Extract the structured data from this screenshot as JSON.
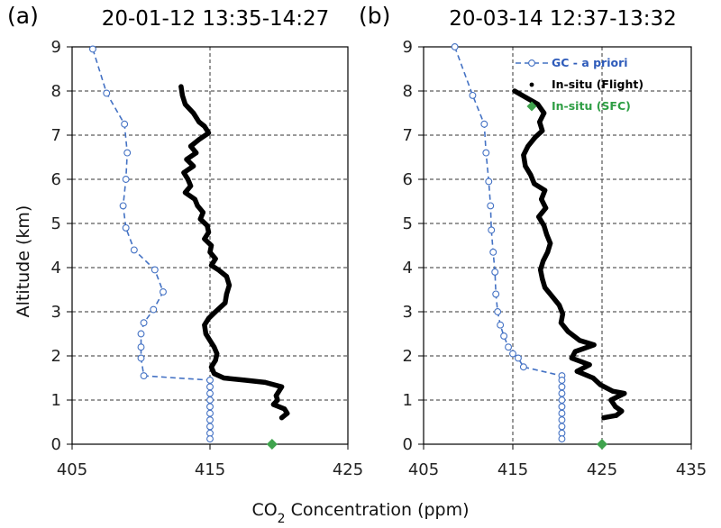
{
  "chart_data": [
    {
      "type": "scatter",
      "panel_label": "(a)",
      "title": "20-01-12  13:35-14:27",
      "xlabel": "CO2 Concentration (ppm)",
      "ylabel": "Altitude (km)",
      "xlim": [
        405,
        425
      ],
      "ylim": [
        0,
        9
      ],
      "x_ticks": [
        405,
        415,
        425
      ],
      "y_ticks": [
        0,
        1,
        2,
        3,
        4,
        5,
        6,
        7,
        8,
        9
      ],
      "grid": "dashed, major ticks",
      "series": [
        {
          "name": "GC - a priori",
          "style": "dashed-line-open-circles",
          "color": "#4472C4",
          "points": [
            [
              406.5,
              8.95
            ],
            [
              407.5,
              7.95
            ],
            [
              408.8,
              7.25
            ],
            [
              409.0,
              6.6
            ],
            [
              408.9,
              6.0
            ],
            [
              408.7,
              5.4
            ],
            [
              408.9,
              4.9
            ],
            [
              409.5,
              4.4
            ],
            [
              411.0,
              3.95
            ],
            [
              411.6,
              3.45
            ],
            [
              410.9,
              3.05
            ],
            [
              410.2,
              2.75
            ],
            [
              410.0,
              2.5
            ],
            [
              410.0,
              2.2
            ],
            [
              410.0,
              1.95
            ],
            [
              410.2,
              1.55
            ],
            [
              415.0,
              1.45
            ],
            [
              415.0,
              1.3
            ],
            [
              415.0,
              1.15
            ],
            [
              415.0,
              1.0
            ],
            [
              415.0,
              0.85
            ],
            [
              415.0,
              0.7
            ],
            [
              415.0,
              0.55
            ],
            [
              415.0,
              0.4
            ],
            [
              415.0,
              0.25
            ],
            [
              415.0,
              0.12
            ]
          ]
        },
        {
          "name": "In-situ (Flight)",
          "style": "black-dots",
          "color": "#000000",
          "points": [
            [
              412.9,
              8.1
            ],
            [
              413.0,
              7.9
            ],
            [
              413.2,
              7.7
            ],
            [
              413.8,
              7.5
            ],
            [
              414.2,
              7.3
            ],
            [
              414.6,
              7.2
            ],
            [
              414.9,
              7.05
            ],
            [
              414.2,
              6.9
            ],
            [
              413.6,
              6.75
            ],
            [
              414.0,
              6.6
            ],
            [
              413.3,
              6.45
            ],
            [
              413.8,
              6.3
            ],
            [
              413.1,
              6.15
            ],
            [
              413.4,
              6.0
            ],
            [
              413.6,
              5.85
            ],
            [
              413.2,
              5.7
            ],
            [
              413.9,
              5.55
            ],
            [
              414.1,
              5.4
            ],
            [
              414.5,
              5.25
            ],
            [
              414.3,
              5.1
            ],
            [
              414.8,
              4.95
            ],
            [
              414.9,
              4.8
            ],
            [
              414.6,
              4.65
            ],
            [
              415.1,
              4.5
            ],
            [
              415.0,
              4.35
            ],
            [
              415.4,
              4.2
            ],
            [
              415.1,
              4.05
            ],
            [
              415.6,
              3.95
            ],
            [
              416.2,
              3.8
            ],
            [
              416.4,
              3.6
            ],
            [
              416.2,
              3.4
            ],
            [
              416.1,
              3.2
            ],
            [
              415.4,
              3.0
            ],
            [
              414.9,
              2.85
            ],
            [
              414.6,
              2.7
            ],
            [
              414.7,
              2.5
            ],
            [
              415.0,
              2.35
            ],
            [
              415.3,
              2.2
            ],
            [
              415.5,
              2.05
            ],
            [
              415.4,
              1.9
            ],
            [
              415.1,
              1.75
            ],
            [
              415.3,
              1.6
            ],
            [
              416.0,
              1.5
            ],
            [
              417.5,
              1.45
            ],
            [
              419.0,
              1.4
            ],
            [
              420.2,
              1.3
            ],
            [
              420.0,
              1.2
            ],
            [
              419.8,
              1.1
            ],
            [
              419.9,
              1.0
            ],
            [
              419.6,
              0.9
            ],
            [
              420.4,
              0.8
            ],
            [
              420.6,
              0.7
            ],
            [
              420.2,
              0.6
            ]
          ]
        },
        {
          "name": "In-situ (SFC)",
          "style": "green-diamond",
          "color": "#3FA34D",
          "points": [
            [
              419.5,
              0.0
            ]
          ]
        }
      ]
    },
    {
      "type": "scatter",
      "panel_label": "(b)",
      "title": "20-03-14  12:37-13:32",
      "xlabel": "CO2 Concentration (ppm)",
      "ylabel": "",
      "xlim": [
        405,
        435
      ],
      "ylim": [
        0,
        9
      ],
      "x_ticks": [
        405,
        415,
        425,
        435
      ],
      "y_ticks": [
        0,
        1,
        2,
        3,
        4,
        5,
        6,
        7,
        8,
        9
      ],
      "grid": "dashed, major ticks",
      "legend": {
        "position": "top-right",
        "entries": [
          {
            "label": "GC - a priori",
            "color": "#2E5BBA",
            "marker": "dashed-circle"
          },
          {
            "label": "In-situ (Flight)",
            "color": "#000000",
            "marker": "dot"
          },
          {
            "label": "In-situ (SFC)",
            "color": "#2E9E44",
            "marker": "diamond"
          }
        ]
      },
      "series": [
        {
          "name": "GC - a priori",
          "style": "dashed-line-open-circles",
          "color": "#4472C4",
          "points": [
            [
              408.5,
              9.0
            ],
            [
              410.5,
              7.9
            ],
            [
              411.8,
              7.25
            ],
            [
              412.0,
              6.6
            ],
            [
              412.3,
              5.95
            ],
            [
              412.5,
              5.4
            ],
            [
              412.6,
              4.85
            ],
            [
              412.8,
              4.35
            ],
            [
              413.0,
              3.9
            ],
            [
              413.1,
              3.4
            ],
            [
              413.3,
              3.0
            ],
            [
              413.6,
              2.7
            ],
            [
              414.0,
              2.45
            ],
            [
              414.5,
              2.2
            ],
            [
              415.0,
              2.05
            ],
            [
              415.6,
              1.95
            ],
            [
              416.2,
              1.75
            ],
            [
              420.5,
              1.55
            ],
            [
              420.5,
              1.45
            ],
            [
              420.5,
              1.3
            ],
            [
              420.5,
              1.15
            ],
            [
              420.5,
              1.0
            ],
            [
              420.5,
              0.85
            ],
            [
              420.5,
              0.7
            ],
            [
              420.5,
              0.55
            ],
            [
              420.5,
              0.4
            ],
            [
              420.5,
              0.25
            ],
            [
              420.5,
              0.12
            ]
          ]
        },
        {
          "name": "In-situ (Flight)",
          "style": "black-dots",
          "color": "#000000",
          "points": [
            [
              415.2,
              8.0
            ],
            [
              416.5,
              7.85
            ],
            [
              417.8,
              7.7
            ],
            [
              418.5,
              7.5
            ],
            [
              418.0,
              7.3
            ],
            [
              418.3,
              7.1
            ],
            [
              417.5,
              6.95
            ],
            [
              416.7,
              6.75
            ],
            [
              416.2,
              6.55
            ],
            [
              416.4,
              6.3
            ],
            [
              417.0,
              6.1
            ],
            [
              417.4,
              5.9
            ],
            [
              418.6,
              5.75
            ],
            [
              418.2,
              5.55
            ],
            [
              418.7,
              5.35
            ],
            [
              417.9,
              5.15
            ],
            [
              418.5,
              4.95
            ],
            [
              418.8,
              4.75
            ],
            [
              419.2,
              4.55
            ],
            [
              418.9,
              4.35
            ],
            [
              418.4,
              4.15
            ],
            [
              418.1,
              3.95
            ],
            [
              418.3,
              3.75
            ],
            [
              418.6,
              3.55
            ],
            [
              419.4,
              3.35
            ],
            [
              420.2,
              3.15
            ],
            [
              420.6,
              2.95
            ],
            [
              420.4,
              2.75
            ],
            [
              421.2,
              2.55
            ],
            [
              422.5,
              2.35
            ],
            [
              424.1,
              2.25
            ],
            [
              422.0,
              2.1
            ],
            [
              421.6,
              1.95
            ],
            [
              423.6,
              1.8
            ],
            [
              422.2,
              1.65
            ],
            [
              424.0,
              1.5
            ],
            [
              424.8,
              1.35
            ],
            [
              426.2,
              1.2
            ],
            [
              427.5,
              1.15
            ],
            [
              426.0,
              1.0
            ],
            [
              426.5,
              0.85
            ],
            [
              427.2,
              0.75
            ],
            [
              426.6,
              0.65
            ],
            [
              425.2,
              0.6
            ]
          ]
        },
        {
          "name": "In-situ (SFC)",
          "style": "green-diamond",
          "color": "#3FA34D",
          "points": [
            [
              425.0,
              0.0
            ]
          ]
        }
      ]
    }
  ],
  "ylabel_shared": "Altitude (km)",
  "xlabel_shared": "CO2 Concentration (ppm)"
}
